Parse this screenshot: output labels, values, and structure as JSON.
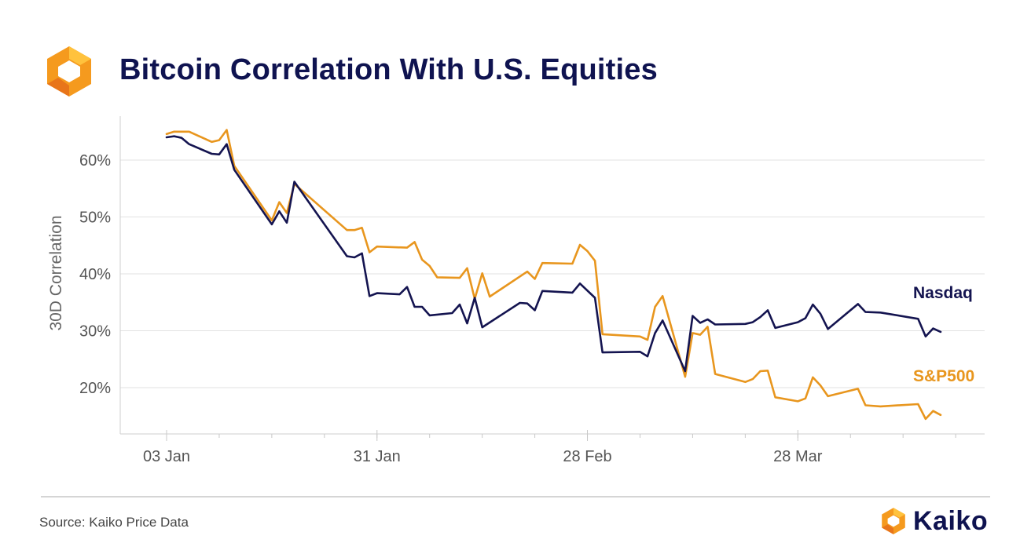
{
  "header": {
    "title": "Bitcoin Correlation With U.S. Equities",
    "logo_icon": "kaiko-hexagon-icon"
  },
  "footer": {
    "source": "Source: Kaiko Price Data",
    "brand_name": "Kaiko",
    "brand_icon": "kaiko-hexagon-icon"
  },
  "colors": {
    "nasdaq": "#141450",
    "sp500": "#e8961e",
    "title": "#0f1350",
    "grid": "#e0e0e0",
    "axis_text": "#555555"
  },
  "chart_data": {
    "type": "line",
    "ylabel": "30D Correlation",
    "ylim": [
      12,
      68
    ],
    "yticks": [
      20,
      30,
      40,
      50,
      60
    ],
    "ytick_labels": [
      "20%",
      "30%",
      "40%",
      "50%",
      "60%"
    ],
    "xlim": [
      "2021-12-29",
      "2022-04-24"
    ],
    "xticks": [
      "2022-01-03",
      "2022-01-31",
      "2022-02-28",
      "2022-03-28"
    ],
    "xtick_labels": [
      "03 Jan",
      "31 Jan",
      "28 Feb",
      "28 Mar"
    ],
    "grid": true,
    "legend": "inline-right",
    "series": [
      {
        "name": "Nasdaq",
        "color": "#141450",
        "points": [
          [
            "2022-01-03",
            64.0
          ],
          [
            "2022-01-04",
            64.2
          ],
          [
            "2022-01-05",
            63.9
          ],
          [
            "2022-01-06",
            62.8
          ],
          [
            "2022-01-09",
            61.1
          ],
          [
            "2022-01-10",
            61.0
          ],
          [
            "2022-01-11",
            62.8
          ],
          [
            "2022-01-12",
            58.3
          ],
          [
            "2022-01-17",
            48.7
          ],
          [
            "2022-01-18",
            51.0
          ],
          [
            "2022-01-19",
            49.0
          ],
          [
            "2022-01-20",
            56.2
          ],
          [
            "2022-01-27",
            43.1
          ],
          [
            "2022-01-28",
            42.9
          ],
          [
            "2022-01-29",
            43.6
          ],
          [
            "2022-01-30",
            36.1
          ],
          [
            "2022-01-31",
            36.6
          ],
          [
            "2022-02-03",
            36.4
          ],
          [
            "2022-02-04",
            37.7
          ],
          [
            "2022-02-05",
            34.2
          ],
          [
            "2022-02-06",
            34.2
          ],
          [
            "2022-02-07",
            32.7
          ],
          [
            "2022-02-10",
            33.1
          ],
          [
            "2022-02-11",
            34.6
          ],
          [
            "2022-02-12",
            31.3
          ],
          [
            "2022-02-13",
            35.8
          ],
          [
            "2022-02-14",
            30.6
          ],
          [
            "2022-02-19",
            34.9
          ],
          [
            "2022-02-20",
            34.8
          ],
          [
            "2022-02-21",
            33.6
          ],
          [
            "2022-02-22",
            37.0
          ],
          [
            "2022-02-26",
            36.7
          ],
          [
            "2022-02-27",
            38.3
          ],
          [
            "2022-03-01",
            35.8
          ],
          [
            "2022-03-02",
            26.2
          ],
          [
            "2022-03-07",
            26.3
          ],
          [
            "2022-03-08",
            25.5
          ],
          [
            "2022-03-09",
            29.6
          ],
          [
            "2022-03-10",
            31.8
          ],
          [
            "2022-03-13",
            22.9
          ],
          [
            "2022-03-14",
            32.6
          ],
          [
            "2022-03-15",
            31.4
          ],
          [
            "2022-03-16",
            32.0
          ],
          [
            "2022-03-17",
            31.1
          ],
          [
            "2022-03-21",
            31.2
          ],
          [
            "2022-03-22",
            31.5
          ],
          [
            "2022-03-23",
            32.4
          ],
          [
            "2022-03-24",
            33.6
          ],
          [
            "2022-03-25",
            30.5
          ],
          [
            "2022-03-28",
            31.5
          ],
          [
            "2022-03-29",
            32.2
          ],
          [
            "2022-03-30",
            34.6
          ],
          [
            "2022-03-31",
            33.0
          ],
          [
            "2022-04-01",
            30.3
          ],
          [
            "2022-04-05",
            34.7
          ],
          [
            "2022-04-06",
            33.3
          ],
          [
            "2022-04-08",
            33.2
          ],
          [
            "2022-04-13",
            32.1
          ],
          [
            "2022-04-14",
            29.0
          ],
          [
            "2022-04-15",
            30.4
          ],
          [
            "2022-04-16",
            29.8
          ]
        ]
      },
      {
        "name": "S&P500",
        "color": "#e8961e",
        "points": [
          [
            "2022-01-03",
            64.6
          ],
          [
            "2022-01-04",
            65.0
          ],
          [
            "2022-01-06",
            65.0
          ],
          [
            "2022-01-09",
            63.2
          ],
          [
            "2022-01-10",
            63.5
          ],
          [
            "2022-01-11",
            65.3
          ],
          [
            "2022-01-12",
            59.0
          ],
          [
            "2022-01-17",
            49.4
          ],
          [
            "2022-01-18",
            52.6
          ],
          [
            "2022-01-19",
            50.7
          ],
          [
            "2022-01-20",
            55.8
          ],
          [
            "2022-01-27",
            47.7
          ],
          [
            "2022-01-28",
            47.7
          ],
          [
            "2022-01-29",
            48.1
          ],
          [
            "2022-01-30",
            43.8
          ],
          [
            "2022-01-31",
            44.8
          ],
          [
            "2022-02-04",
            44.6
          ],
          [
            "2022-02-05",
            45.6
          ],
          [
            "2022-02-06",
            42.5
          ],
          [
            "2022-02-07",
            41.4
          ],
          [
            "2022-02-08",
            39.4
          ],
          [
            "2022-02-11",
            39.3
          ],
          [
            "2022-02-12",
            41.0
          ],
          [
            "2022-02-13",
            35.6
          ],
          [
            "2022-02-14",
            40.1
          ],
          [
            "2022-02-15",
            36.0
          ],
          [
            "2022-02-20",
            40.4
          ],
          [
            "2022-02-21",
            39.1
          ],
          [
            "2022-02-22",
            41.9
          ],
          [
            "2022-02-26",
            41.8
          ],
          [
            "2022-02-27",
            45.1
          ],
          [
            "2022-02-28",
            44.0
          ],
          [
            "2022-03-01",
            42.3
          ],
          [
            "2022-03-02",
            29.4
          ],
          [
            "2022-03-07",
            29.0
          ],
          [
            "2022-03-08",
            28.4
          ],
          [
            "2022-03-09",
            34.2
          ],
          [
            "2022-03-10",
            36.1
          ],
          [
            "2022-03-13",
            21.9
          ],
          [
            "2022-03-14",
            29.6
          ],
          [
            "2022-03-15",
            29.3
          ],
          [
            "2022-03-16",
            30.7
          ],
          [
            "2022-03-17",
            22.4
          ],
          [
            "2022-03-21",
            21.0
          ],
          [
            "2022-03-22",
            21.5
          ],
          [
            "2022-03-23",
            22.9
          ],
          [
            "2022-03-24",
            23.0
          ],
          [
            "2022-03-25",
            18.3
          ],
          [
            "2022-03-28",
            17.6
          ],
          [
            "2022-03-29",
            18.1
          ],
          [
            "2022-03-30",
            21.8
          ],
          [
            "2022-03-31",
            20.4
          ],
          [
            "2022-04-01",
            18.5
          ],
          [
            "2022-04-05",
            19.8
          ],
          [
            "2022-04-06",
            16.9
          ],
          [
            "2022-04-08",
            16.7
          ],
          [
            "2022-04-13",
            17.1
          ],
          [
            "2022-04-14",
            14.5
          ],
          [
            "2022-04-15",
            15.9
          ],
          [
            "2022-04-16",
            15.2
          ]
        ]
      }
    ]
  }
}
